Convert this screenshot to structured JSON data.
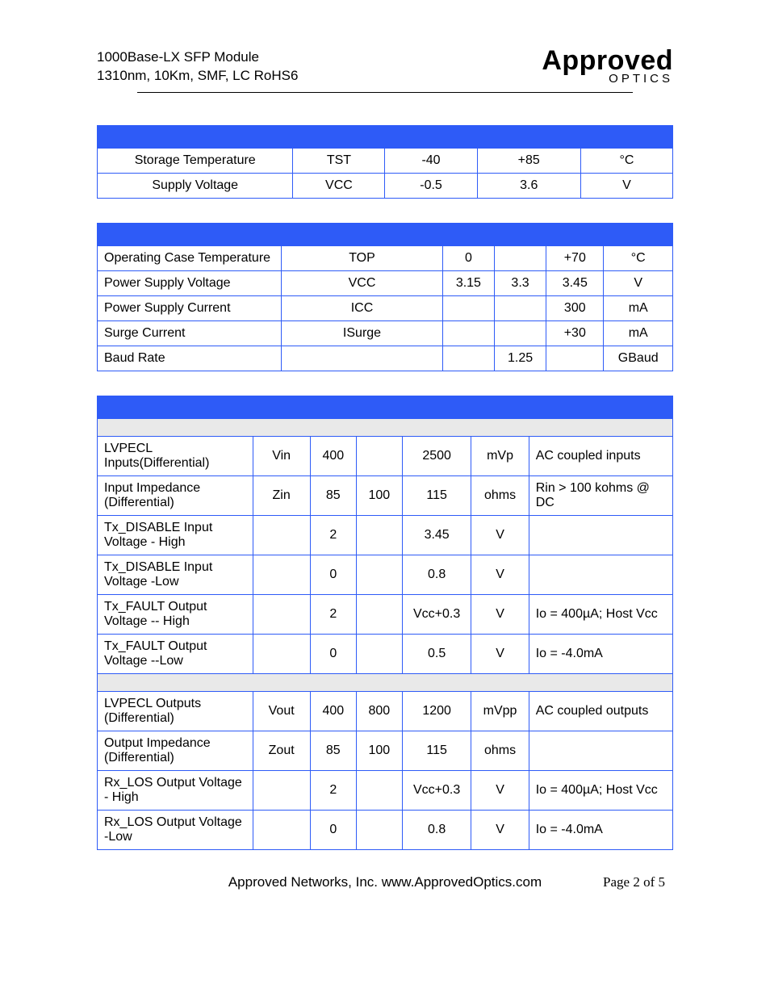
{
  "header": {
    "line1": "1000Base-LX SFP Module",
    "line2": "1310nm, 10Km, SMF, LC RoHS6"
  },
  "logo": {
    "main": "Approved",
    "sub": "OPTICS"
  },
  "colors": {
    "blue": "#2e5bf7",
    "grey": "#e9e9e9",
    "black": "#000000",
    "white": "#ffffff"
  },
  "table1": {
    "columns": 5,
    "col_widths": [
      "34%",
      "16%",
      "16%",
      "18%",
      "16%"
    ],
    "rows": [
      {
        "cells": [
          "Storage Temperature",
          "TST",
          "-40",
          "+85",
          "°C"
        ],
        "align": [
          "center",
          "center",
          "center",
          "center",
          "center"
        ]
      },
      {
        "cells": [
          "Supply Voltage",
          "VCC",
          "-0.5",
          "3.6",
          "V"
        ],
        "align": [
          "center",
          "center",
          "center",
          "center",
          "center"
        ]
      }
    ]
  },
  "table2": {
    "columns": 6,
    "col_widths": [
      "32%",
      "28%",
      "9%",
      "9%",
      "10%",
      "12%"
    ],
    "rows": [
      {
        "cells": [
          "Operating Case Temperature",
          "TOP",
          "0",
          "",
          "+70",
          "°C"
        ],
        "align": [
          "left",
          "center",
          "center",
          "center",
          "center",
          "center"
        ]
      },
      {
        "cells": [
          "Power Supply Voltage",
          "VCC",
          "3.15",
          "3.3",
          "3.45",
          "V"
        ],
        "align": [
          "left",
          "center",
          "center",
          "center",
          "center",
          "center"
        ]
      },
      {
        "cells": [
          "Power Supply Current",
          "ICC",
          "",
          "",
          "300",
          "mA"
        ],
        "align": [
          "left",
          "center",
          "center",
          "center",
          "center",
          "center"
        ]
      },
      {
        "cells": [
          "Surge Current",
          "ISurge",
          "",
          "",
          "+30",
          "mA"
        ],
        "align": [
          "left",
          "center",
          "center",
          "center",
          "center",
          "center"
        ]
      },
      {
        "cells": [
          "Baud Rate",
          "",
          "",
          "1.25",
          "",
          "GBaud"
        ],
        "align": [
          "left",
          "center",
          "center",
          "center",
          "center",
          "center"
        ]
      }
    ]
  },
  "table3": {
    "columns": 7,
    "col_widths": [
      "27%",
      "10%",
      "8%",
      "8%",
      "12%",
      "10%",
      "25%"
    ],
    "rows": [
      {
        "type": "grey"
      },
      {
        "cells": [
          "LVPECL Inputs(Differential)",
          "Vin",
          "400",
          "",
          "2500",
          "mVp",
          "AC coupled inputs"
        ],
        "align": [
          "left",
          "center",
          "center",
          "center",
          "center",
          "center",
          "left"
        ]
      },
      {
        "cells": [
          "Input Impedance (Differential)",
          "Zin",
          "85",
          "100",
          "115",
          "ohms",
          "Rin > 100 kohms @ DC"
        ],
        "align": [
          "left",
          "center",
          "center",
          "center",
          "center",
          "center",
          "left"
        ]
      },
      {
        "cells": [
          "Tx_DISABLE Input Voltage - High",
          "",
          "2",
          "",
          "3.45",
          "V",
          ""
        ],
        "align": [
          "left",
          "center",
          "center",
          "center",
          "center",
          "center",
          "left"
        ]
      },
      {
        "cells": [
          "Tx_DISABLE Input Voltage -Low",
          "",
          "0",
          "",
          "0.8",
          "V",
          ""
        ],
        "align": [
          "left",
          "center",
          "center",
          "center",
          "center",
          "center",
          "left"
        ]
      },
      {
        "cells": [
          "Tx_FAULT Output Voltage -- High",
          "",
          "2",
          "",
          "Vcc+0.3",
          "V",
          "Io = 400µA; Host Vcc"
        ],
        "align": [
          "left",
          "center",
          "center",
          "center",
          "center",
          "center",
          "left"
        ]
      },
      {
        "cells": [
          "Tx_FAULT Output Voltage --Low",
          "",
          "0",
          "",
          "0.5",
          "V",
          "Io = -4.0mA"
        ],
        "align": [
          "left",
          "center",
          "center",
          "center",
          "center",
          "center",
          "left"
        ]
      },
      {
        "type": "grey"
      },
      {
        "cells": [
          "LVPECL Outputs (Differential)",
          "Vout",
          "400",
          "800",
          "1200",
          "mVpp",
          "AC coupled outputs"
        ],
        "align": [
          "left",
          "center",
          "center",
          "center",
          "center",
          "center",
          "left"
        ]
      },
      {
        "cells": [
          "Output Impedance (Differential)",
          "Zout",
          "85",
          "100",
          "115",
          "ohms",
          ""
        ],
        "align": [
          "left",
          "center",
          "center",
          "center",
          "center",
          "center",
          "left"
        ]
      },
      {
        "cells": [
          "Rx_LOS Output Voltage - High",
          "",
          "2",
          "",
          "Vcc+0.3",
          "V",
          "Io = 400µA; Host Vcc"
        ],
        "align": [
          "left",
          "center",
          "center",
          "center",
          "center",
          "center",
          "left"
        ]
      },
      {
        "cells": [
          "Rx_LOS Output Voltage -Low",
          "",
          "0",
          "",
          "0.8",
          "V",
          "Io = -4.0mA"
        ],
        "align": [
          "left",
          "center",
          "center",
          "center",
          "center",
          "center",
          "left"
        ]
      }
    ]
  },
  "footer": {
    "center": "Approved Networks, Inc.  www.ApprovedOptics.com",
    "right": "Page 2 of 5"
  }
}
